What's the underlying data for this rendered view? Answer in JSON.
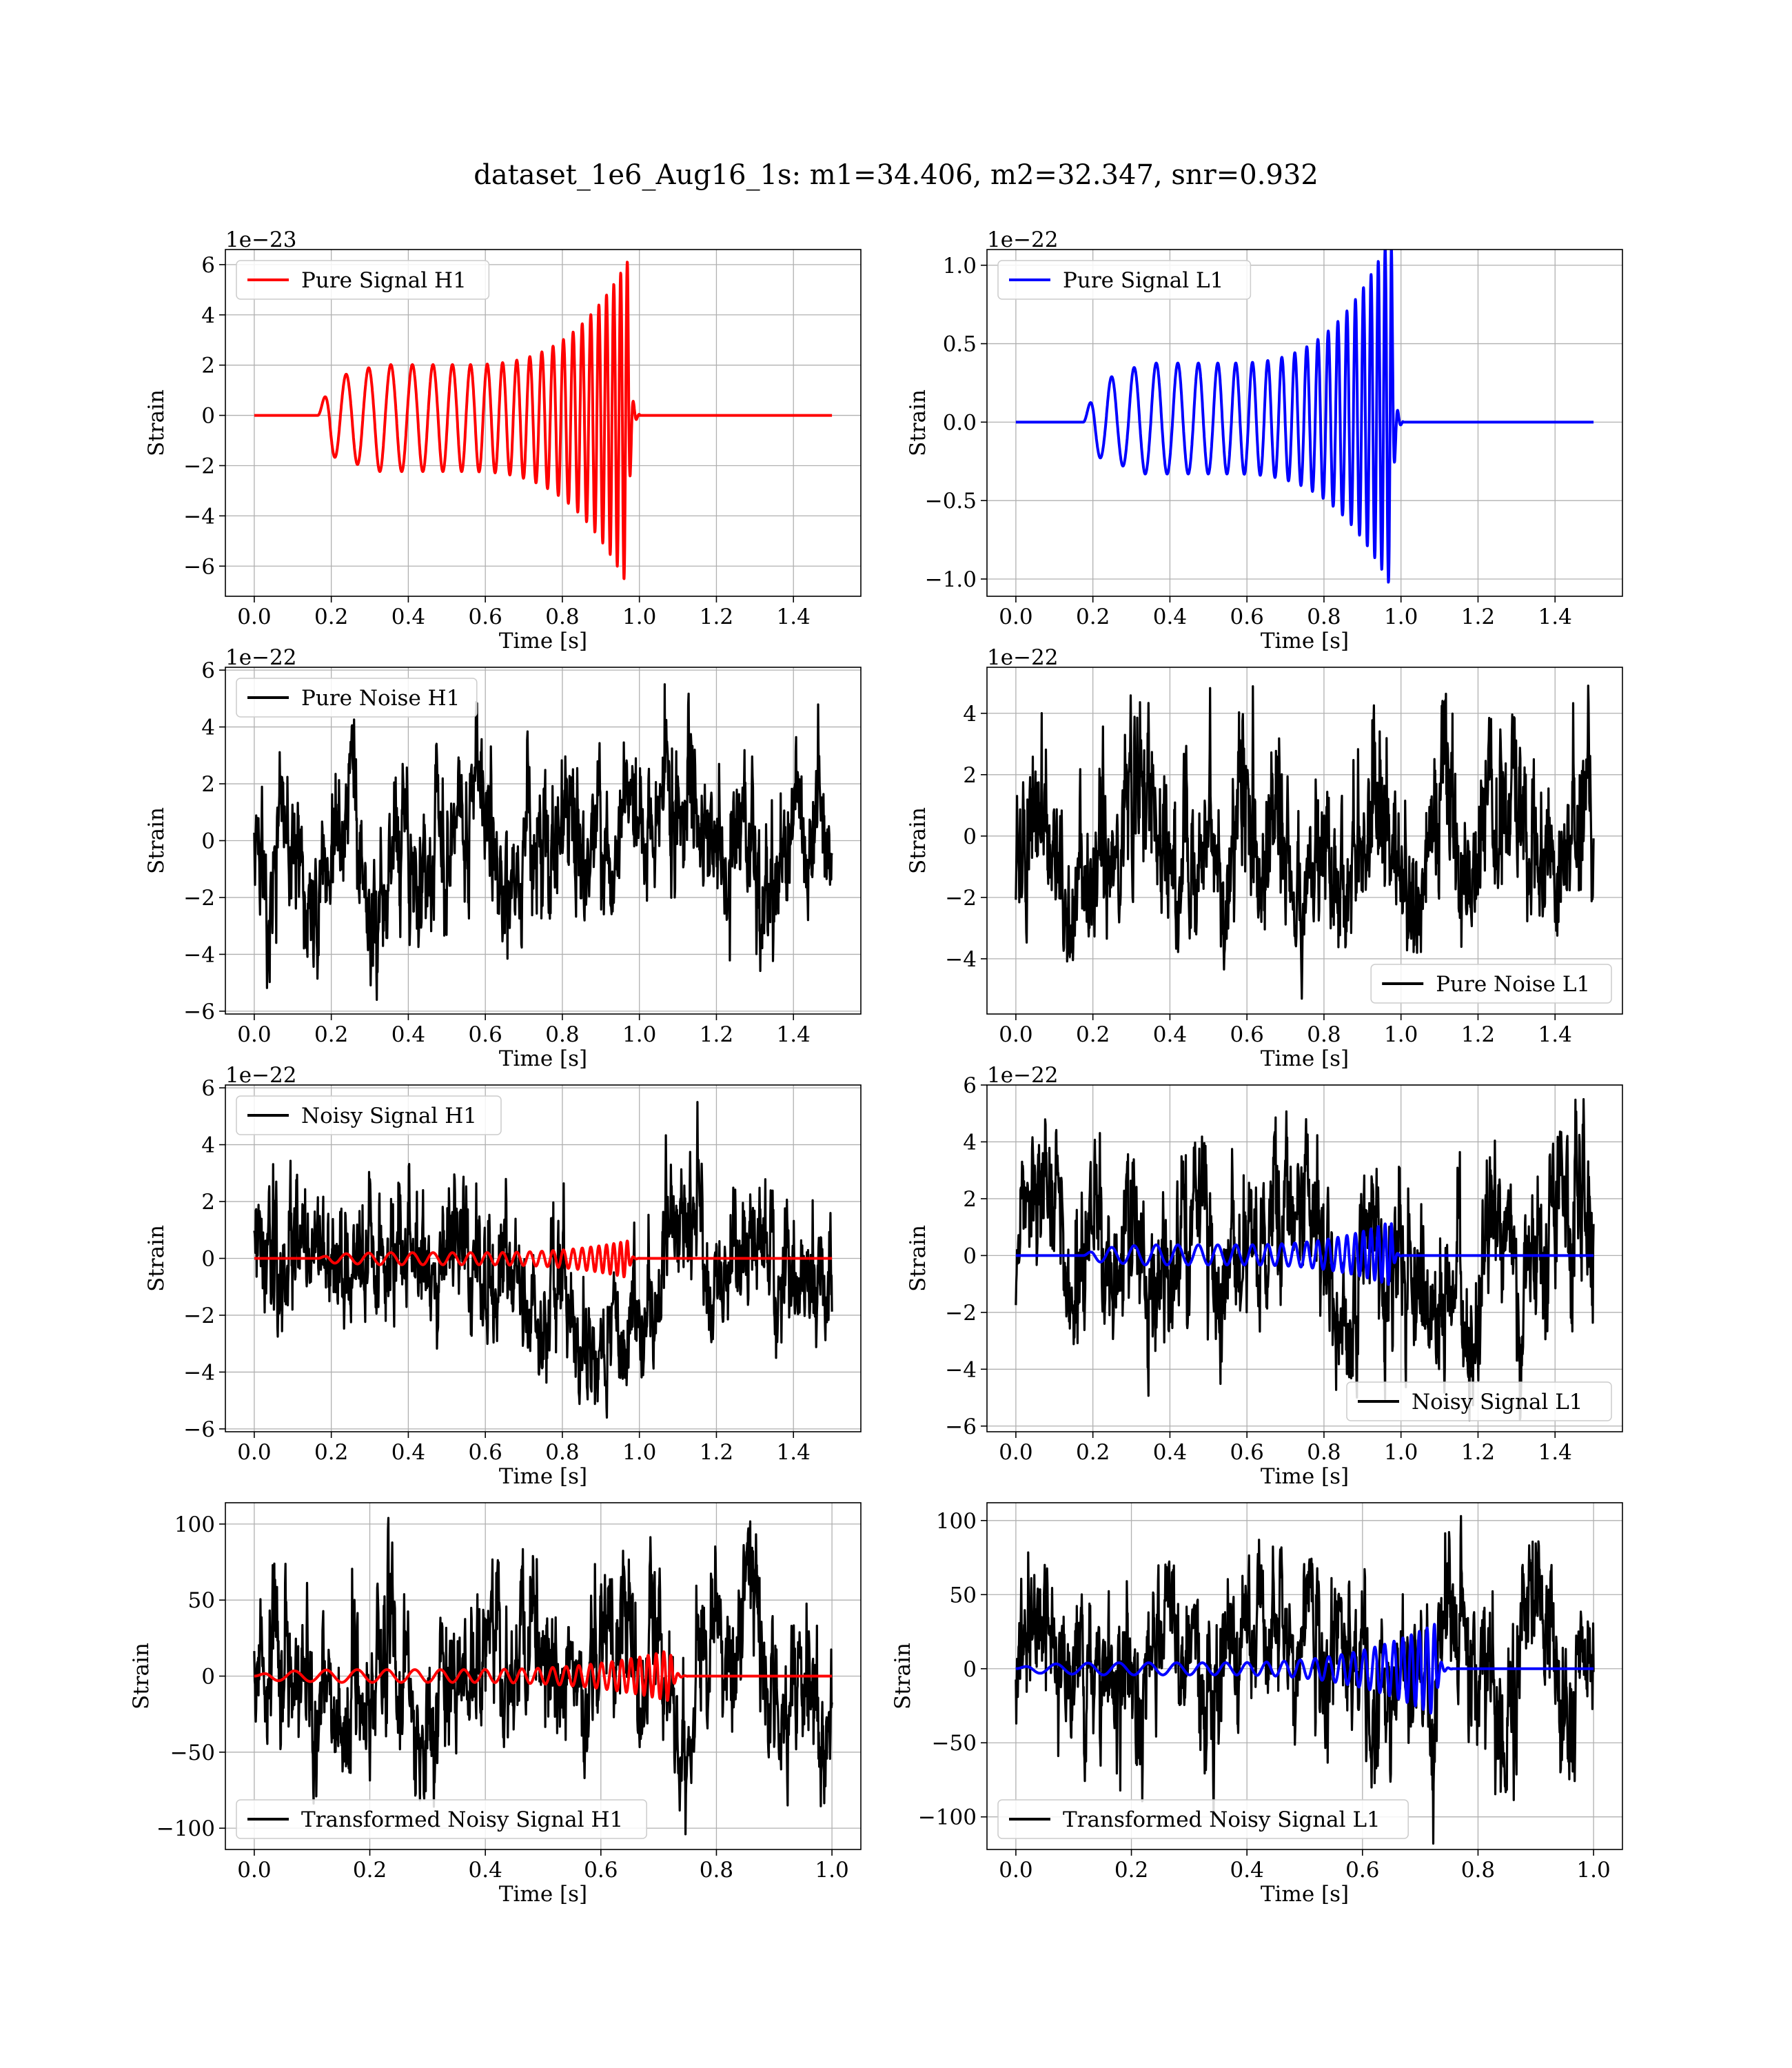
{
  "figure": {
    "title": "dataset_1e6_Aug16_1s: m1=34.406, m2=32.347, snr=0.932"
  },
  "chart_data": [
    {
      "type": "line",
      "id": "pure-signal-h1",
      "kind": "chirp",
      "xlabel": "Time [s]",
      "ylabel": "Strain",
      "offset_text": "1e−23",
      "xlim": [
        -0.075,
        1.575
      ],
      "ylim": [
        -7.2,
        6.6
      ],
      "xticks": [
        0.0,
        0.2,
        0.4,
        0.6,
        0.8,
        1.0,
        1.2,
        1.4
      ],
      "xtick_labels": [
        "0.0",
        "0.2",
        "0.4",
        "0.6",
        "0.8",
        "1.0",
        "1.2",
        "1.4"
      ],
      "yticks": [
        -6,
        -4,
        -2,
        0,
        2,
        4,
        6
      ],
      "ytick_labels": [
        "−6",
        "−4",
        "−2",
        "0",
        "2",
        "4",
        "6"
      ],
      "grid": true,
      "legend": "upper left",
      "series": [
        {
          "name": "Pure Signal H1",
          "color": "#ff0000",
          "t_start": 0.0,
          "t_end": 1.5,
          "onset": 0.165,
          "merger": 0.97,
          "base_amp": 1.3,
          "plateau_amp": 2.0,
          "peak_amp": 6.1,
          "trough_amp": -6.5,
          "start_freq": 17,
          "end_freq": 60,
          "in_legend": true
        }
      ]
    },
    {
      "type": "line",
      "id": "pure-signal-l1",
      "kind": "chirp",
      "xlabel": "Time [s]",
      "ylabel": "Strain",
      "offset_text": "1e−22",
      "xlim": [
        -0.075,
        1.575
      ],
      "ylim": [
        -1.11,
        1.1
      ],
      "xticks": [
        0.0,
        0.2,
        0.4,
        0.6,
        0.8,
        1.0,
        1.2,
        1.4
      ],
      "xtick_labels": [
        "0.0",
        "0.2",
        "0.4",
        "0.6",
        "0.8",
        "1.0",
        "1.2",
        "1.4"
      ],
      "yticks": [
        -1.0,
        -0.5,
        0.0,
        0.5,
        1.0
      ],
      "ytick_labels": [
        "−1.0",
        "−0.5",
        "0.0",
        "0.5",
        "1.0"
      ],
      "grid": true,
      "legend": "upper left",
      "series": [
        {
          "name": "Pure Signal L1",
          "color": "#0000ff",
          "t_start": 0.0,
          "t_end": 1.5,
          "onset": 0.175,
          "merger": 0.975,
          "base_amp": 0.2,
          "plateau_amp": 0.35,
          "peak_amp": 1.12,
          "trough_amp": -1.02,
          "start_freq": 17,
          "end_freq": 60,
          "in_legend": true
        }
      ]
    },
    {
      "type": "line",
      "id": "pure-noise-h1",
      "kind": "noise",
      "xlabel": "Time [s]",
      "ylabel": "Strain",
      "offset_text": "1e−22",
      "xlim": [
        -0.075,
        1.575
      ],
      "ylim": [
        -6.1,
        6.1
      ],
      "xticks": [
        0.0,
        0.2,
        0.4,
        0.6,
        0.8,
        1.0,
        1.2,
        1.4
      ],
      "xtick_labels": [
        "0.0",
        "0.2",
        "0.4",
        "0.6",
        "0.8",
        "1.0",
        "1.2",
        "1.4"
      ],
      "yticks": [
        -6,
        -4,
        -2,
        0,
        2,
        4,
        6
      ],
      "ytick_labels": [
        "−6",
        "−4",
        "−2",
        "0",
        "2",
        "4",
        "6"
      ],
      "grid": true,
      "legend": "upper left",
      "series": [
        {
          "name": "Pure Noise H1",
          "color": "#000000",
          "t_start": 0.0,
          "t_end": 1.5,
          "max": 5.5,
          "min": -5.6,
          "in_legend": true
        }
      ]
    },
    {
      "type": "line",
      "id": "pure-noise-l1",
      "kind": "noise",
      "xlabel": "Time [s]",
      "ylabel": "Strain",
      "offset_text": "1e−22",
      "xlim": [
        -0.075,
        1.575
      ],
      "ylim": [
        -5.8,
        5.5
      ],
      "xticks": [
        0.0,
        0.2,
        0.4,
        0.6,
        0.8,
        1.0,
        1.2,
        1.4
      ],
      "xtick_labels": [
        "0.0",
        "0.2",
        "0.4",
        "0.6",
        "0.8",
        "1.0",
        "1.2",
        "1.4"
      ],
      "yticks": [
        -4,
        -2,
        0,
        2,
        4
      ],
      "ytick_labels": [
        "−4",
        "−2",
        "0",
        "2",
        "4"
      ],
      "grid": true,
      "legend": "lower right",
      "series": [
        {
          "name": "Pure Noise L1",
          "color": "#000000",
          "t_start": 0.0,
          "t_end": 1.5,
          "max": 4.9,
          "min": -5.3,
          "in_legend": true
        }
      ]
    },
    {
      "type": "line",
      "id": "noisy-signal-h1",
      "kind": "noise-with-chirp",
      "xlabel": "Time [s]",
      "ylabel": "Strain",
      "offset_text": "1e−22",
      "xlim": [
        -0.075,
        1.575
      ],
      "ylim": [
        -6.1,
        6.1
      ],
      "xticks": [
        0.0,
        0.2,
        0.4,
        0.6,
        0.8,
        1.0,
        1.2,
        1.4
      ],
      "xtick_labels": [
        "0.0",
        "0.2",
        "0.4",
        "0.6",
        "0.8",
        "1.0",
        "1.2",
        "1.4"
      ],
      "yticks": [
        -6,
        -4,
        -2,
        0,
        2,
        4,
        6
      ],
      "ytick_labels": [
        "−6",
        "−4",
        "−2",
        "0",
        "2",
        "4",
        "6"
      ],
      "grid": true,
      "legend": "upper left",
      "series": [
        {
          "name": "Noisy Signal H1",
          "color": "#000000",
          "t_start": 0.0,
          "t_end": 1.5,
          "max": 5.5,
          "min": -5.6,
          "in_legend": true
        },
        {
          "name": "",
          "color": "#ff0000",
          "t_start": 0.0,
          "t_end": 1.5,
          "onset": 0.165,
          "merger": 0.97,
          "base_amp": 0.13,
          "plateau_amp": 0.2,
          "peak_amp": 0.61,
          "trough_amp": -0.65,
          "start_freq": 17,
          "end_freq": 60,
          "in_legend": false
        }
      ]
    },
    {
      "type": "line",
      "id": "noisy-signal-l1",
      "kind": "noise-with-chirp",
      "xlabel": "Time [s]",
      "ylabel": "Strain",
      "offset_text": "1e−22",
      "xlim": [
        -0.075,
        1.575
      ],
      "ylim": [
        -6.2,
        6.0
      ],
      "xticks": [
        0.0,
        0.2,
        0.4,
        0.6,
        0.8,
        1.0,
        1.2,
        1.4
      ],
      "xtick_labels": [
        "0.0",
        "0.2",
        "0.4",
        "0.6",
        "0.8",
        "1.0",
        "1.2",
        "1.4"
      ],
      "yticks": [
        -6,
        -4,
        -2,
        0,
        2,
        4,
        6
      ],
      "ytick_labels": [
        "−6",
        "−4",
        "−2",
        "0",
        "2",
        "4",
        "6"
      ],
      "grid": true,
      "legend": "lower right",
      "series": [
        {
          "name": "Noisy Signal L1",
          "color": "#000000",
          "t_start": 0.0,
          "t_end": 1.5,
          "max": 5.5,
          "min": -5.8,
          "in_legend": true
        },
        {
          "name": "",
          "color": "#0000ff",
          "t_start": 0.0,
          "t_end": 1.5,
          "onset": 0.175,
          "merger": 0.975,
          "base_amp": 0.2,
          "plateau_amp": 0.35,
          "peak_amp": 1.12,
          "trough_amp": -1.02,
          "start_freq": 17,
          "end_freq": 60,
          "in_legend": false
        }
      ]
    },
    {
      "type": "line",
      "id": "transformed-noisy-signal-h1",
      "kind": "noise-with-chirp",
      "xlabel": "Time [s]",
      "ylabel": "Strain",
      "offset_text": "",
      "xlim": [
        -0.05,
        1.05
      ],
      "ylim": [
        -114,
        114
      ],
      "xticks": [
        0.0,
        0.2,
        0.4,
        0.6,
        0.8,
        1.0
      ],
      "xtick_labels": [
        "0.0",
        "0.2",
        "0.4",
        "0.6",
        "0.8",
        "1.0"
      ],
      "yticks": [
        -100,
        -50,
        0,
        50,
        100
      ],
      "ytick_labels": [
        "−100",
        "−50",
        "0",
        "50",
        "100"
      ],
      "grid": true,
      "legend": "lower left",
      "series": [
        {
          "name": "Transformed Noisy Signal H1",
          "color": "#000000",
          "t_start": 0.0,
          "t_end": 1.0,
          "max": 104,
          "min": -104,
          "in_legend": true
        },
        {
          "name": "",
          "color": "#ff0000",
          "t_start": 0.0,
          "t_end": 1.0,
          "onset": 0.0,
          "merger": 0.72,
          "base_amp": 2.5,
          "plateau_amp": 4.0,
          "peak_amp": 16,
          "trough_amp": -16,
          "start_freq": 18,
          "end_freq": 80,
          "in_legend": false
        }
      ]
    },
    {
      "type": "line",
      "id": "transformed-noisy-signal-l1",
      "kind": "noise-with-chirp",
      "xlabel": "Time [s]",
      "ylabel": "Strain",
      "offset_text": "",
      "xlim": [
        -0.05,
        1.05
      ],
      "ylim": [
        -122,
        112
      ],
      "xticks": [
        0.0,
        0.2,
        0.4,
        0.6,
        0.8,
        1.0
      ],
      "xtick_labels": [
        "0.0",
        "0.2",
        "0.4",
        "0.6",
        "0.8",
        "1.0"
      ],
      "yticks": [
        -100,
        -50,
        0,
        50,
        100
      ],
      "ytick_labels": [
        "−100",
        "−50",
        "0",
        "50",
        "100"
      ],
      "grid": true,
      "legend": "lower left",
      "series": [
        {
          "name": "Transformed Noisy Signal L1",
          "color": "#000000",
          "t_start": 0.0,
          "t_end": 1.0,
          "max": 103,
          "min": -118,
          "in_legend": true
        },
        {
          "name": "",
          "color": "#0000ff",
          "t_start": 0.0,
          "t_end": 1.0,
          "onset": 0.0,
          "merger": 0.725,
          "base_amp": 2.5,
          "plateau_amp": 4.0,
          "peak_amp": 30,
          "trough_amp": -30,
          "start_freq": 18,
          "end_freq": 80,
          "in_legend": false
        }
      ]
    }
  ]
}
